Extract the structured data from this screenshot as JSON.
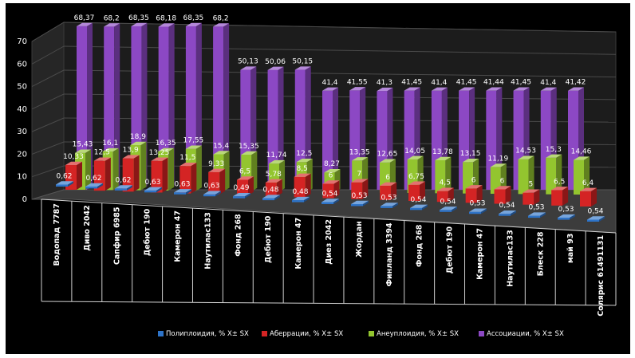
{
  "chart_data": {
    "type": "bar",
    "style": "3d-clustered-column",
    "categories": [
      "Водопад 7787",
      "Диво 2042",
      "Сапфир 6985",
      "Дебют 190",
      "Камерон 47",
      "Наутилас133",
      "Фонд 268",
      "Дебют 190",
      "Камерон 47",
      "Диез 2042",
      "Жордан",
      "Финланд 3394",
      "Фонд 268",
      "Дебют 190",
      "Камерон 47",
      "Наутилас133",
      "Блеск 228",
      "май 93",
      "Солярис 61491131"
    ],
    "series": [
      {
        "name": "Полиплоидия, % X± SX",
        "color": "#2e74c9",
        "labels": [
          "0,62",
          "0,62",
          "0,62",
          "0,63",
          "0,63",
          "0,63",
          "0,49",
          "0,48",
          "0,48",
          "0,54",
          "0,53",
          "0,53",
          "0,54",
          "0,54",
          "0,53",
          "0,54",
          "0,53",
          "0,53",
          "0,54"
        ],
        "values": [
          0.62,
          0.62,
          0.62,
          0.63,
          0.63,
          0.63,
          0.49,
          0.48,
          0.48,
          0.54,
          0.53,
          0.53,
          0.54,
          0.54,
          0.53,
          0.54,
          0.53,
          0.53,
          0.54
        ]
      },
      {
        "name": "Аберрации, % X± SX",
        "color": "#d42424",
        "labels": [
          "10,33",
          "12,5",
          "13,9",
          "13,25",
          "11,5",
          "9,33",
          "6,5",
          "5,78",
          "8,5",
          "6",
          "7",
          "6",
          "6,75",
          "4,5",
          "6",
          "6",
          "5",
          "6,5",
          "6,4"
        ],
        "values": [
          10.33,
          12.5,
          13.9,
          13.25,
          11.5,
          9.33,
          6.5,
          5.78,
          8.5,
          6,
          7,
          6,
          6.75,
          4.5,
          6,
          6,
          5,
          6.5,
          6.4
        ]
      },
      {
        "name": "Анеуплоидия, % X± SX",
        "color": "#93c52f",
        "labels": [
          "15,43",
          "16,1",
          "18,9",
          "16,35",
          "17,55",
          "15,4",
          "15,35",
          "11,74",
          "12,5",
          "8,27",
          "13,35",
          "12,65",
          "14,05",
          "13,78",
          "13,15",
          "11,19",
          "14,53",
          "15,3",
          "14,46"
        ],
        "values": [
          15.43,
          16.1,
          18.9,
          16.35,
          17.55,
          15.4,
          15.35,
          11.74,
          12.5,
          8.27,
          13.35,
          12.65,
          14.05,
          13.78,
          13.15,
          11.19,
          14.53,
          15.3,
          14.46
        ]
      },
      {
        "name": "Ассоциации, % X± SX",
        "color": "#8c48c4",
        "labels": [
          "68,37",
          "68,2",
          "68,35",
          "68,18",
          "68,35",
          "68,2",
          "50,13",
          "50,06",
          "50,15",
          "41,4",
          "41,55",
          "41,3",
          "41,45",
          "41,4",
          "41,45",
          "41,44",
          "41,45",
          "41,4",
          "41,42"
        ],
        "values": [
          68.37,
          68.2,
          68.35,
          68.18,
          68.35,
          68.2,
          50.13,
          50.06,
          50.15,
          41.4,
          41.55,
          41.3,
          41.45,
          41.4,
          41.45,
          41.44,
          41.45,
          41.4,
          41.42
        ]
      }
    ],
    "y_ticks": [
      "0",
      "10",
      "20",
      "30",
      "40",
      "50",
      "60",
      "70"
    ],
    "ylim": [
      0,
      70
    ],
    "grid": true,
    "legend": "bottom"
  }
}
